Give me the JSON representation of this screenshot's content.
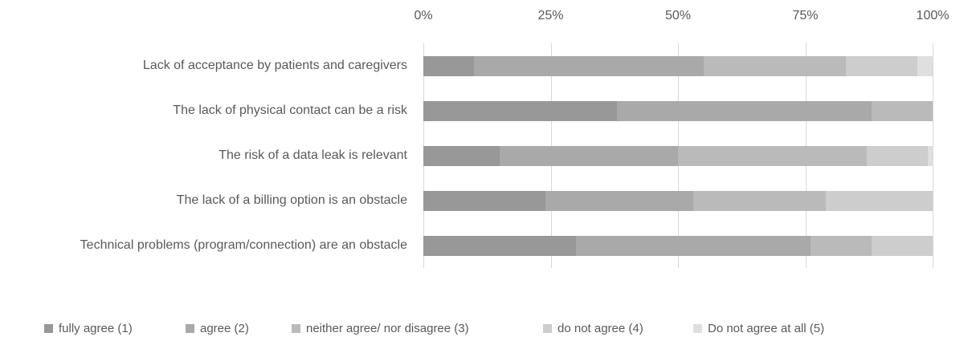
{
  "chart_data": {
    "type": "bar",
    "orientation": "horizontal",
    "stacked": true,
    "title": "",
    "xlabel": "",
    "ylabel": "",
    "unit": "percent",
    "x_axis": {
      "position": "top",
      "min": 0,
      "max": 100,
      "tick_labels": [
        "0%",
        "25%",
        "50%",
        "75%",
        "100%"
      ],
      "tick_values": [
        0,
        25,
        50,
        75,
        100
      ]
    },
    "grid": true,
    "legend_position": "bottom",
    "categories": [
      "Lack of acceptance by patients and caregivers",
      "The lack of physical contact can be a risk",
      "The risk of a data leak is relevant",
      "The lack of a billing option is an obstacle",
      "Technical problems (program/connection) are an obstacle"
    ],
    "series": [
      {
        "name": "fully agree (1)",
        "color": "#989898",
        "values": [
          10,
          38,
          15,
          24,
          30
        ]
      },
      {
        "name": "agree (2)",
        "color": "#a9a9a9",
        "values": [
          45,
          50,
          35,
          29,
          46
        ]
      },
      {
        "name": "neither agree/ nor disagree (3)",
        "color": "#bababa",
        "values": [
          28,
          12,
          37,
          26,
          12
        ]
      },
      {
        "name": "do not agree (4)",
        "color": "#cdcdcd",
        "values": [
          14,
          0,
          12,
          21,
          12
        ]
      },
      {
        "name": "Do not agree at all (5)",
        "color": "#dfdfdf",
        "values": [
          3,
          0,
          1,
          0,
          0
        ]
      }
    ]
  },
  "colors": {
    "text": "#595959",
    "gridline": "#d9d9d9",
    "background": "#ffffff"
  }
}
